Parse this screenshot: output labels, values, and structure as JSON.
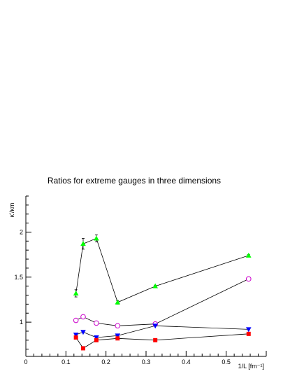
{
  "chart_data": {
    "type": "scatter",
    "title": "Ratios for extreme gauges in three dimensions",
    "xlabel": "1/L [fm⁻¹]",
    "ylabel": "κ'/κm",
    "xlim": [
      0,
      0.6
    ],
    "ylim": [
      0.62,
      2.4
    ],
    "xticks": [
      "0",
      "0.1",
      "0.2",
      "0.3",
      "0.4",
      "0.5"
    ],
    "yticks": [
      "1",
      "1.5",
      "2"
    ],
    "grid": false,
    "series": [
      {
        "color": "#00ff00",
        "marker": "triangle-up",
        "x": [
          0.125,
          0.143,
          0.176,
          0.229,
          0.323,
          0.556
        ],
        "y": [
          1.32,
          1.87,
          1.93,
          1.22,
          1.4,
          1.74
        ],
        "err": [
          0.04,
          0.06,
          0.04,
          0.02,
          0.01,
          0.01
        ]
      },
      {
        "color": "#cc00cc",
        "marker": "circle-open",
        "x": [
          0.125,
          0.143,
          0.176,
          0.229,
          0.323,
          0.556
        ],
        "y": [
          1.02,
          1.06,
          0.99,
          0.96,
          0.98,
          1.48
        ],
        "err": [
          0,
          0,
          0,
          0,
          0,
          0
        ]
      },
      {
        "color": "#0000ff",
        "marker": "triangle-down",
        "x": [
          0.125,
          0.143,
          0.176,
          0.229,
          0.323,
          0.556
        ],
        "y": [
          0.86,
          0.89,
          0.83,
          0.85,
          0.96,
          0.92
        ],
        "err": [
          0,
          0,
          0,
          0,
          0,
          0
        ]
      },
      {
        "color": "#ff0000",
        "marker": "square",
        "x": [
          0.125,
          0.143,
          0.176,
          0.229,
          0.323,
          0.556
        ],
        "y": [
          0.83,
          0.71,
          0.8,
          0.82,
          0.8,
          0.87
        ],
        "err": [
          0,
          0,
          0,
          0,
          0,
          0
        ]
      }
    ]
  }
}
